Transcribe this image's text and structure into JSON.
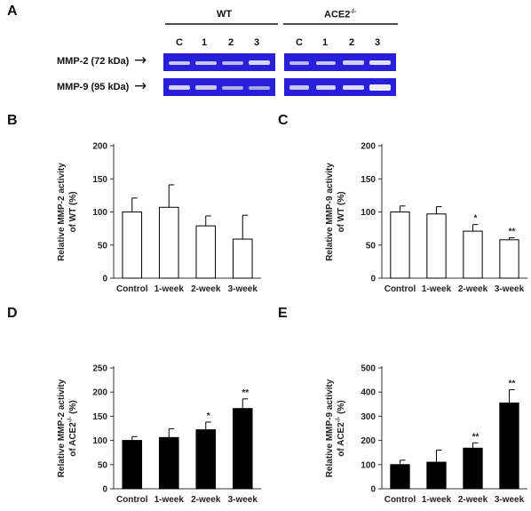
{
  "panel_a": {
    "letter": "A",
    "groups": [
      "WT",
      "ACE2"
    ],
    "group_superscript": "-/-",
    "lanes": [
      "C",
      "1",
      "2",
      "3"
    ],
    "rows": [
      {
        "label": "MMP-2 (72 kDa)",
        "arrow": "→"
      },
      {
        "label": "MMP-9 (95 kDa)",
        "arrow": "→"
      }
    ],
    "colors": {
      "gel": "#2a1fd8",
      "band": "#c8c8ee"
    }
  },
  "chart_data": [
    {
      "type": "bar",
      "panel": "B",
      "categories": [
        "Control",
        "1-week",
        "2-week",
        "3-week"
      ],
      "values": [
        100,
        107,
        79,
        59
      ],
      "errors": [
        21,
        34,
        15,
        36
      ],
      "sig": [
        "",
        "",
        "",
        ""
      ],
      "ylabel_line1": "Relative MMP-2 activity",
      "ylabel_line2": "of WT (%)",
      "ylabel_sup": "",
      "ylabel_line2_tail": "",
      "ylim": [
        0,
        200
      ],
      "yticks": [
        0,
        50,
        100,
        150,
        200
      ],
      "bar_color": "#ffffff"
    },
    {
      "type": "bar",
      "panel": "C",
      "categories": [
        "Control",
        "1-week",
        "2-week",
        "3-week"
      ],
      "values": [
        100,
        97,
        71,
        58
      ],
      "errors": [
        9,
        11,
        10,
        3
      ],
      "sig": [
        "",
        "",
        "*",
        "**"
      ],
      "ylabel_line1": "Relative MMP-9 activity",
      "ylabel_line2": "of WT (%)",
      "ylabel_sup": "",
      "ylabel_line2_tail": "",
      "ylim": [
        0,
        200
      ],
      "yticks": [
        0,
        50,
        100,
        150,
        200
      ],
      "bar_color": "#ffffff"
    },
    {
      "type": "bar",
      "panel": "D",
      "categories": [
        "Control",
        "1-week",
        "2-week",
        "3-week"
      ],
      "values": [
        100,
        106,
        122,
        166
      ],
      "errors": [
        8,
        18,
        16,
        20
      ],
      "sig": [
        "",
        "",
        "*",
        "**"
      ],
      "ylabel_line1": "Relative MMP-2 activity",
      "ylabel_line2": "of ACE2",
      "ylabel_sup": "-/-",
      "ylabel_line2_tail": " (%)",
      "ylim": [
        0,
        250
      ],
      "yticks": [
        0,
        50,
        100,
        150,
        200,
        250
      ],
      "bar_color": "#000000"
    },
    {
      "type": "bar",
      "panel": "E",
      "categories": [
        "Control",
        "1-week",
        "2-week",
        "3-week"
      ],
      "values": [
        100,
        110,
        168,
        355
      ],
      "errors": [
        18,
        50,
        22,
        55
      ],
      "sig": [
        "",
        "",
        "**",
        "**"
      ],
      "ylabel_line1": "Relative MMP-9 activity",
      "ylabel_line2": "of ACE2",
      "ylabel_sup": "-/-",
      "ylabel_line2_tail": " (%)",
      "ylim": [
        0,
        500
      ],
      "yticks": [
        0,
        100,
        200,
        300,
        400,
        500
      ],
      "bar_color": "#000000"
    }
  ]
}
